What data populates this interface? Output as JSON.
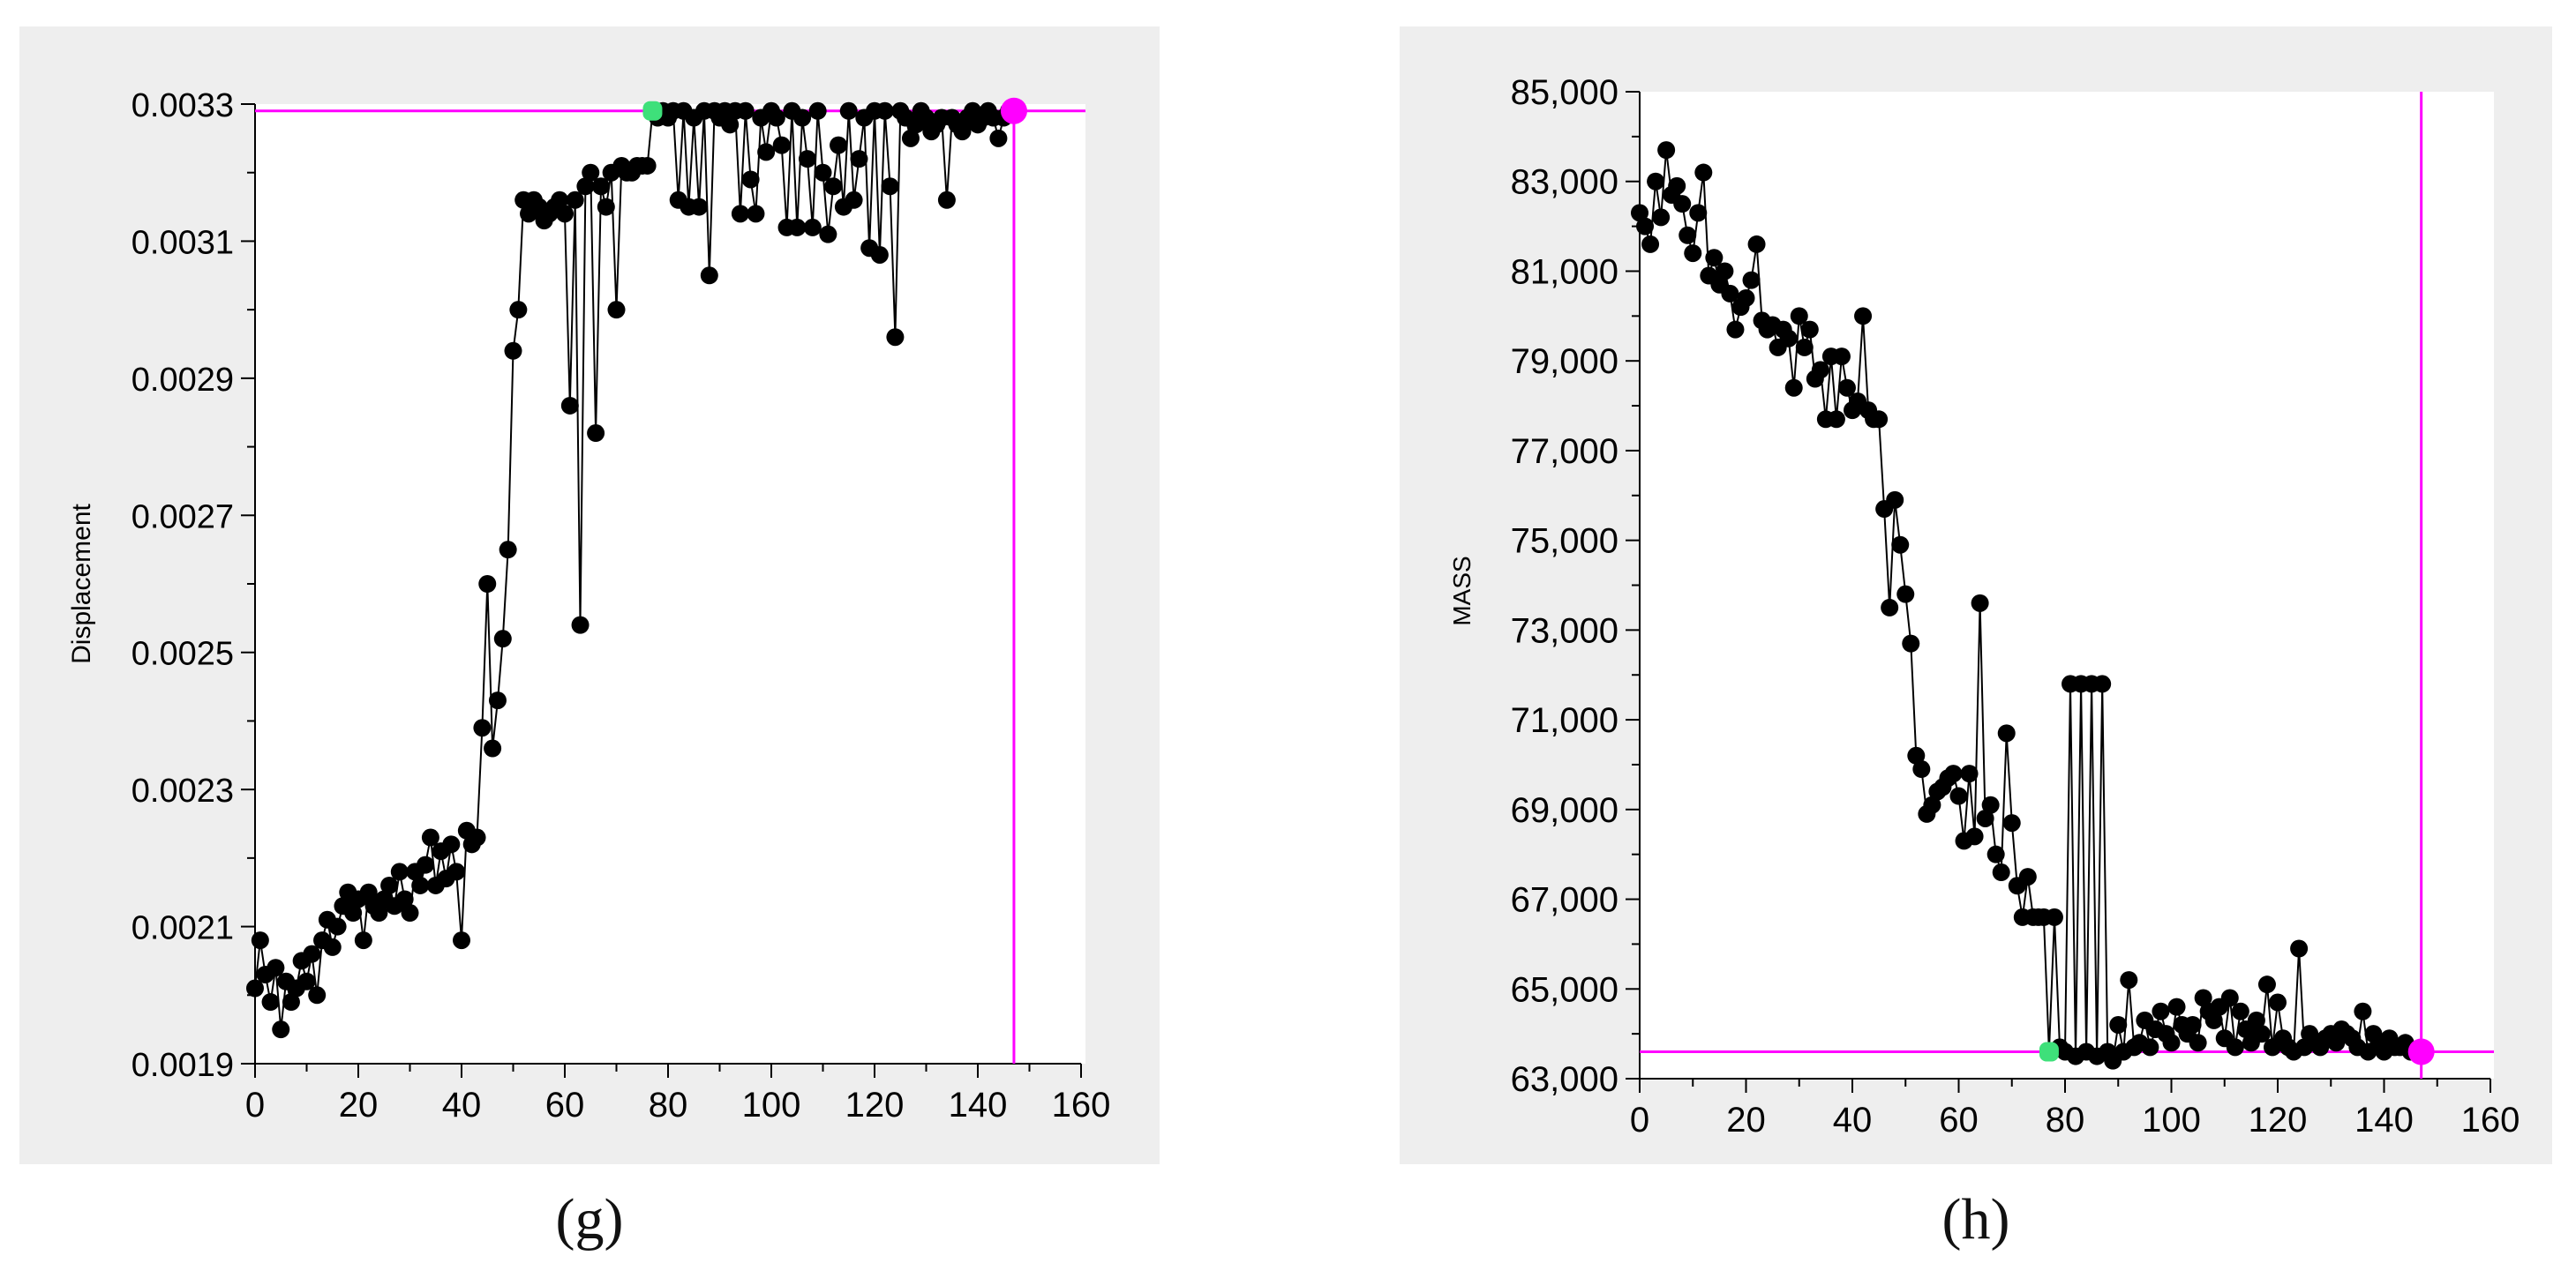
{
  "chart_data": [
    {
      "type": "line",
      "panel": "g",
      "caption": "(g)",
      "ylabel": "Displacement",
      "xlabel": "",
      "xlim": [
        0,
        160
      ],
      "ylim": [
        0.0019,
        0.0033
      ],
      "x_ticks": [
        "0",
        "20",
        "40",
        "60",
        "80",
        "100",
        "120",
        "140",
        "160"
      ],
      "y_ticks": [
        "0.0019",
        "0.0021",
        "0.0023",
        "0.0025",
        "0.0027",
        "0.0029",
        "0.0031",
        "0.0033"
      ],
      "grid": false,
      "colors": {
        "line": "#000000",
        "marker": "#000000",
        "reference": "#ff00ff",
        "start_marker": "#3ee07a",
        "end_marker": "#ff00ff"
      },
      "reference_lines": {
        "horizontal_y": 0.00329,
        "vertical_x": 147
      },
      "start_point": {
        "x": 77,
        "y": 0.00329
      },
      "end_point": {
        "x": 147,
        "y": 0.00329
      },
      "series": [
        {
          "x": [
            0,
            1,
            2,
            3,
            4,
            5,
            6,
            7,
            8,
            9,
            10,
            11,
            12,
            13,
            14,
            15,
            16,
            17,
            18,
            19,
            20,
            21,
            22,
            23,
            24,
            25,
            26,
            27,
            28,
            29,
            30,
            31,
            32,
            33,
            34,
            35,
            36,
            37,
            38,
            39,
            40,
            41,
            42,
            43,
            44,
            45,
            46,
            47,
            48,
            49,
            50,
            51,
            52,
            53,
            54,
            55,
            56,
            57,
            58,
            59,
            60,
            61,
            62,
            63,
            64,
            65,
            66,
            67,
            68,
            69,
            70,
            71,
            72,
            73,
            74,
            75,
            76,
            77,
            78,
            79,
            80,
            81,
            82,
            83,
            84,
            85,
            86,
            87,
            88,
            89,
            90,
            91,
            92,
            93,
            94,
            95,
            96,
            97,
            98,
            99,
            100,
            101,
            102,
            103,
            104,
            105,
            106,
            107,
            108,
            109,
            110,
            111,
            112,
            113,
            114,
            115,
            116,
            117,
            118,
            119,
            120,
            121,
            122,
            123,
            124,
            125,
            126,
            127,
            128,
            129,
            130,
            131,
            132,
            133,
            134,
            135,
            136,
            137,
            138,
            139,
            140,
            141,
            142,
            143,
            144,
            145,
            146,
            147
          ],
          "y": [
            0.00201,
            0.00208,
            0.00203,
            0.00199,
            0.00204,
            0.00195,
            0.00202,
            0.00199,
            0.00201,
            0.00205,
            0.00202,
            0.00206,
            0.002,
            0.00208,
            0.00211,
            0.00207,
            0.0021,
            0.00213,
            0.00215,
            0.00212,
            0.00214,
            0.00208,
            0.00215,
            0.00213,
            0.00212,
            0.00214,
            0.00216,
            0.00213,
            0.00218,
            0.00214,
            0.00212,
            0.00218,
            0.00216,
            0.00219,
            0.00223,
            0.00216,
            0.00221,
            0.00217,
            0.00222,
            0.00218,
            0.00208,
            0.00224,
            0.00222,
            0.00223,
            0.00239,
            0.0026,
            0.00236,
            0.00243,
            0.00252,
            0.00265,
            0.00294,
            0.003,
            0.00316,
            0.00314,
            0.00316,
            0.00315,
            0.00313,
            0.00314,
            0.00315,
            0.00316,
            0.00314,
            0.00286,
            0.00316,
            0.00254,
            0.00318,
            0.0032,
            0.00282,
            0.00318,
            0.00315,
            0.0032,
            0.003,
            0.00321,
            0.0032,
            0.0032,
            0.00321,
            0.00321,
            0.00321,
            0.00329,
            0.00328,
            0.00329,
            0.00328,
            0.00329,
            0.00316,
            0.00329,
            0.00315,
            0.00328,
            0.00315,
            0.00329,
            0.00305,
            0.00329,
            0.00328,
            0.00329,
            0.00327,
            0.00329,
            0.00314,
            0.00329,
            0.00319,
            0.00314,
            0.00328,
            0.00323,
            0.00329,
            0.00328,
            0.00324,
            0.00312,
            0.00329,
            0.00312,
            0.00328,
            0.00322,
            0.00312,
            0.00329,
            0.0032,
            0.00311,
            0.00318,
            0.00324,
            0.00315,
            0.00329,
            0.00316,
            0.00322,
            0.00328,
            0.00309,
            0.00329,
            0.00308,
            0.00329,
            0.00318,
            0.00296,
            0.00329,
            0.00328,
            0.00325,
            0.00327,
            0.00329,
            0.00328,
            0.00326,
            0.00327,
            0.00328,
            0.00316,
            0.00328,
            0.00327,
            0.00326,
            0.00328,
            0.00329,
            0.00327,
            0.00328,
            0.00329,
            0.00328,
            0.00325,
            0.00328,
            0.00329,
            0.00329
          ]
        }
      ]
    },
    {
      "type": "line",
      "panel": "h",
      "caption": "(h)",
      "ylabel": "MASS",
      "xlabel": "",
      "xlim": [
        0,
        160
      ],
      "ylim": [
        63000,
        85000
      ],
      "x_ticks": [
        "0",
        "20",
        "40",
        "60",
        "80",
        "100",
        "120",
        "140",
        "160"
      ],
      "y_ticks": [
        "63,000",
        "65,000",
        "67,000",
        "69,000",
        "71,000",
        "73,000",
        "75,000",
        "77,000",
        "79,000",
        "81,000",
        "83,000",
        "85,000"
      ],
      "grid": false,
      "colors": {
        "line": "#000000",
        "marker": "#000000",
        "reference": "#ff00ff",
        "start_marker": "#3ee07a",
        "end_marker": "#ff00ff"
      },
      "reference_lines": {
        "horizontal_y": 63600,
        "vertical_x": 147
      },
      "start_point": {
        "x": 77,
        "y": 63600
      },
      "end_point": {
        "x": 147,
        "y": 63600
      },
      "series": [
        {
          "x": [
            0,
            1,
            2,
            3,
            4,
            5,
            6,
            7,
            8,
            9,
            10,
            11,
            12,
            13,
            14,
            15,
            16,
            17,
            18,
            19,
            20,
            21,
            22,
            23,
            24,
            25,
            26,
            27,
            28,
            29,
            30,
            31,
            32,
            33,
            34,
            35,
            36,
            37,
            38,
            39,
            40,
            41,
            42,
            43,
            44,
            45,
            46,
            47,
            48,
            49,
            50,
            51,
            52,
            53,
            54,
            55,
            56,
            57,
            58,
            59,
            60,
            61,
            62,
            63,
            64,
            65,
            66,
            67,
            68,
            69,
            70,
            71,
            72,
            73,
            74,
            75,
            76,
            77,
            78,
            79,
            80,
            81,
            82,
            83,
            84,
            85,
            86,
            87,
            88,
            89,
            90,
            91,
            92,
            93,
            94,
            95,
            96,
            97,
            98,
            99,
            100,
            101,
            102,
            103,
            104,
            105,
            106,
            107,
            108,
            109,
            110,
            111,
            112,
            113,
            114,
            115,
            116,
            117,
            118,
            119,
            120,
            121,
            122,
            123,
            124,
            125,
            126,
            127,
            128,
            129,
            130,
            131,
            132,
            133,
            134,
            135,
            136,
            137,
            138,
            139,
            140,
            141,
            142,
            143,
            144,
            145,
            146,
            147
          ],
          "y": [
            82300,
            82000,
            81600,
            83000,
            82200,
            83700,
            82700,
            82900,
            82500,
            81800,
            81400,
            82300,
            83200,
            80900,
            81300,
            80700,
            81000,
            80500,
            79700,
            80200,
            80400,
            80800,
            81600,
            79900,
            79700,
            79800,
            79300,
            79700,
            79500,
            78400,
            80000,
            79300,
            79700,
            78600,
            78800,
            77700,
            79100,
            77700,
            79100,
            78400,
            77900,
            78100,
            80000,
            77900,
            77700,
            77700,
            75700,
            73500,
            75900,
            74900,
            73800,
            72700,
            70200,
            69900,
            68900,
            69100,
            69400,
            69500,
            69700,
            69800,
            69300,
            68300,
            69800,
            68400,
            73600,
            68800,
            69100,
            68000,
            67600,
            70700,
            68700,
            67300,
            66600,
            67500,
            66600,
            66600,
            66600,
            63600,
            66600,
            63700,
            63600,
            71800,
            63500,
            71800,
            63600,
            71800,
            63500,
            71800,
            63600,
            63400,
            64200,
            63600,
            65200,
            63700,
            63800,
            64300,
            63700,
            64100,
            64500,
            64000,
            63800,
            64600,
            64200,
            64000,
            64200,
            63800,
            64800,
            64500,
            64300,
            64600,
            63900,
            64800,
            63700,
            64500,
            64100,
            63800,
            64300,
            64000,
            65100,
            63700,
            64700,
            63900,
            63700,
            63600,
            65900,
            63700,
            64000,
            63800,
            63700,
            63900,
            64000,
            63800,
            64100,
            64000,
            63900,
            63700,
            64500,
            63600,
            64000,
            63800,
            63600,
            63900,
            63700,
            63700,
            63800,
            63600,
            63600,
            63600
          ]
        }
      ]
    }
  ]
}
